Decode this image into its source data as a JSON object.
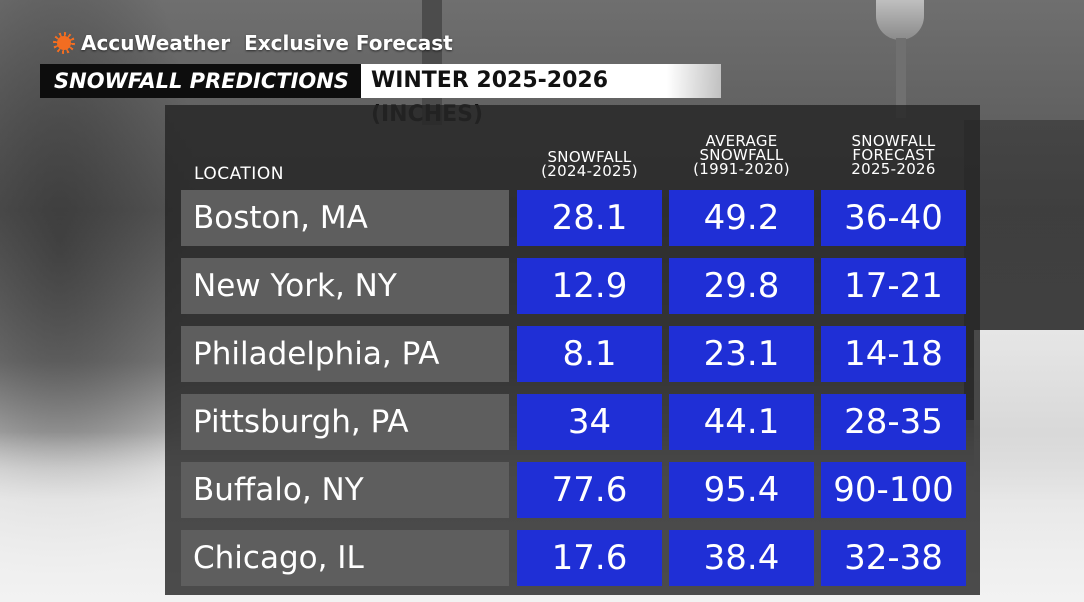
{
  "brand": {
    "name": "AccuWeather",
    "tagline": "Exclusive Forecast",
    "accent_color": "#f26d21",
    "icon": "sun-icon"
  },
  "title": {
    "left": "SNOWFALL PREDICTIONS",
    "right": "WINTER 2025-2026 (INCHES)"
  },
  "table": {
    "location_header": "LOCATION",
    "columns": [
      {
        "lines": [
          "SNOWFALL",
          "(2024-2025)"
        ]
      },
      {
        "lines": [
          "AVERAGE",
          "SNOWFALL",
          "(1991-2020)"
        ]
      },
      {
        "lines": [
          "SNOWFALL",
          "FORECAST",
          "2025-2026"
        ]
      }
    ],
    "cell_color": "#1f2fd6",
    "label_color": "#5e5e5e",
    "rows": [
      {
        "location": "Boston, MA",
        "snowfall_2024_2025": "28.1",
        "average_1991_2020": "49.2",
        "forecast_2025_2026": "36-40"
      },
      {
        "location": "New York, NY",
        "snowfall_2024_2025": "12.9",
        "average_1991_2020": "29.8",
        "forecast_2025_2026": "17-21"
      },
      {
        "location": "Philadelphia, PA",
        "snowfall_2024_2025": "8.1",
        "average_1991_2020": "23.1",
        "forecast_2025_2026": "14-18"
      },
      {
        "location": "Pittsburgh, PA",
        "snowfall_2024_2025": "34",
        "average_1991_2020": "44.1",
        "forecast_2025_2026": "28-35"
      },
      {
        "location": "Buffalo, NY",
        "snowfall_2024_2025": "77.6",
        "average_1991_2020": "95.4",
        "forecast_2025_2026": "90-100"
      },
      {
        "location": "Chicago, IL",
        "snowfall_2024_2025": "17.6",
        "average_1991_2020": "38.4",
        "forecast_2025_2026": "32-38"
      }
    ]
  }
}
